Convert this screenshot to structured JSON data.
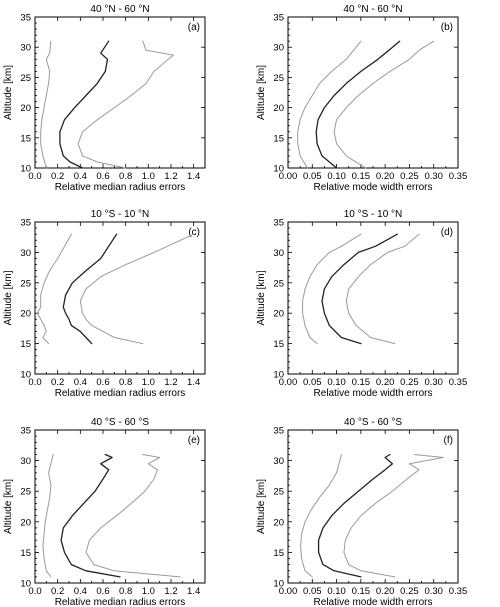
{
  "chart_data": [
    {
      "type": "line",
      "title": "40 °N - 60 °N",
      "panel_label": "(a)",
      "xlabel": "Relative median radius errors",
      "ylabel": "Altitude [km]",
      "xlim": [
        0,
        1.5
      ],
      "ylim": [
        10,
        35
      ],
      "xticks": [
        "0.0",
        "0.2",
        "0.4",
        "0.6",
        "0.8",
        "1.0",
        "1.2",
        "1.4"
      ],
      "yticks": [
        "10",
        "15",
        "20",
        "25",
        "30",
        "35"
      ],
      "series": [
        {
          "style": "light",
          "x": [
            0.1,
            0.07,
            0.05,
            0.05,
            0.06,
            0.08,
            0.1,
            0.12,
            0.13,
            0.1,
            0.13,
            0.14
          ],
          "y": [
            10,
            12,
            14,
            16,
            18,
            20,
            22,
            24,
            26,
            28,
            29,
            31
          ]
        },
        {
          "style": "dark",
          "x": [
            0.42,
            0.31,
            0.25,
            0.22,
            0.22,
            0.26,
            0.35,
            0.45,
            0.55,
            0.62,
            0.64,
            0.58,
            0.65
          ],
          "y": [
            10,
            11,
            12,
            14,
            16,
            18,
            20,
            22,
            24,
            26,
            28,
            29,
            31
          ]
        },
        {
          "style": "light",
          "x": [
            0.8,
            0.55,
            0.42,
            0.38,
            0.42,
            0.55,
            0.7,
            0.85,
            0.98,
            1.05,
            1.22,
            0.98,
            0.95
          ],
          "y": [
            10,
            11,
            12,
            14,
            16,
            18,
            20,
            22,
            24,
            26,
            28.7,
            29.5,
            31
          ]
        }
      ]
    },
    {
      "type": "line",
      "title": "40 °N - 60 °N",
      "panel_label": "(b)",
      "xlabel": "Relative mode width errors",
      "ylabel": "Altitude [km]",
      "xlim": [
        0,
        0.35
      ],
      "ylim": [
        10,
        35
      ],
      "xticks": [
        "0.00",
        "0.05",
        "0.10",
        "0.15",
        "0.20",
        "0.25",
        "0.30",
        "0.35"
      ],
      "yticks": [
        "10",
        "15",
        "20",
        "25",
        "30",
        "35"
      ],
      "series": [
        {
          "style": "light",
          "x": [
            0.04,
            0.025,
            0.02,
            0.02,
            0.025,
            0.035,
            0.05,
            0.065,
            0.09,
            0.12,
            0.15
          ],
          "y": [
            10,
            12,
            14,
            16,
            18,
            20,
            22,
            24,
            26,
            28,
            31
          ]
        },
        {
          "style": "dark",
          "x": [
            0.1,
            0.07,
            0.06,
            0.058,
            0.062,
            0.075,
            0.095,
            0.12,
            0.15,
            0.185,
            0.23
          ],
          "y": [
            10,
            12,
            14,
            16,
            18,
            20,
            22,
            24,
            26,
            28,
            31
          ]
        },
        {
          "style": "light",
          "x": [
            0.16,
            0.12,
            0.1,
            0.095,
            0.1,
            0.12,
            0.145,
            0.175,
            0.21,
            0.25,
            0.27,
            0.3
          ],
          "y": [
            10,
            12,
            14,
            16,
            18,
            20,
            22,
            24,
            26,
            28,
            29.5,
            31
          ]
        }
      ]
    },
    {
      "type": "line",
      "title": "10 °S - 10 °N",
      "panel_label": "(c)",
      "xlabel": "Relative median radius errors",
      "ylabel": "Altitude [km]",
      "xlim": [
        0,
        1.5
      ],
      "ylim": [
        10,
        35
      ],
      "xticks": [
        "0.0",
        "0.2",
        "0.4",
        "0.6",
        "0.8",
        "1.0",
        "1.2",
        "1.4"
      ],
      "yticks": [
        "10",
        "15",
        "20",
        "25",
        "30",
        "35"
      ],
      "series": [
        {
          "style": "light",
          "x": [
            0.12,
            0.07,
            0.1,
            0.08,
            0.05,
            0.02,
            0.05,
            0.05,
            0.08,
            0.13,
            0.2,
            0.32
          ],
          "y": [
            15,
            16,
            17,
            18,
            19,
            20,
            21,
            23,
            25,
            27,
            29,
            33
          ]
        },
        {
          "style": "dark",
          "x": [
            0.5,
            0.45,
            0.4,
            0.32,
            0.3,
            0.27,
            0.25,
            0.27,
            0.33,
            0.45,
            0.58,
            0.72
          ],
          "y": [
            15,
            16,
            17,
            18,
            19,
            20,
            21,
            23,
            25,
            27,
            29,
            33
          ]
        },
        {
          "style": "light",
          "x": [
            0.95,
            0.7,
            0.6,
            0.5,
            0.45,
            0.42,
            0.4,
            0.45,
            0.58,
            0.8,
            1.05,
            1.4
          ],
          "y": [
            15,
            16,
            17,
            18,
            19,
            20,
            22,
            24,
            26,
            28,
            30,
            33
          ]
        }
      ]
    },
    {
      "type": "line",
      "title": "10 °S - 10 °N",
      "panel_label": "(d)",
      "xlabel": "Relative mode width errors",
      "ylabel": "Altitude [km]",
      "xlim": [
        0,
        0.35
      ],
      "ylim": [
        10,
        35
      ],
      "xticks": [
        "0.00",
        "0.05",
        "0.10",
        "0.15",
        "0.20",
        "0.25",
        "0.30",
        "0.35"
      ],
      "yticks": [
        "10",
        "15",
        "20",
        "25",
        "30",
        "35"
      ],
      "series": [
        {
          "style": "light",
          "x": [
            0.06,
            0.045,
            0.035,
            0.03,
            0.03,
            0.035,
            0.045,
            0.06,
            0.085,
            0.11,
            0.15
          ],
          "y": [
            15,
            16,
            18,
            20,
            22,
            24,
            26,
            28,
            30,
            31,
            33
          ]
        },
        {
          "style": "dark",
          "x": [
            0.15,
            0.11,
            0.085,
            0.075,
            0.07,
            0.075,
            0.09,
            0.115,
            0.145,
            0.18,
            0.225
          ],
          "y": [
            15,
            16,
            18,
            20,
            22,
            24,
            26,
            28,
            30,
            31,
            33
          ]
        },
        {
          "style": "light",
          "x": [
            0.22,
            0.17,
            0.14,
            0.125,
            0.12,
            0.125,
            0.145,
            0.17,
            0.205,
            0.24,
            0.27
          ],
          "y": [
            15,
            16,
            18,
            20,
            22,
            24,
            26,
            28,
            30,
            31,
            33
          ]
        }
      ]
    },
    {
      "type": "line",
      "title": "40 °S - 60 °S",
      "panel_label": "(e)",
      "xlabel": "Relative median radius errors",
      "ylabel": "Altitude [km]",
      "xlim": [
        0,
        1.5
      ],
      "ylim": [
        10,
        35
      ],
      "xticks": [
        "0.0",
        "0.2",
        "0.4",
        "0.6",
        "0.8",
        "1.0",
        "1.2",
        "1.4"
      ],
      "yticks": [
        "10",
        "15",
        "20",
        "25",
        "30",
        "35"
      ],
      "series": [
        {
          "style": "light",
          "x": [
            0.14,
            0.1,
            0.08,
            0.07,
            0.08,
            0.09,
            0.11,
            0.13,
            0.14,
            0.12,
            0.14,
            0.16
          ],
          "y": [
            11,
            12,
            14,
            16,
            18,
            20,
            22,
            24,
            26,
            28,
            29.5,
            31
          ]
        },
        {
          "style": "dark",
          "x": [
            0.75,
            0.45,
            0.32,
            0.26,
            0.23,
            0.25,
            0.33,
            0.43,
            0.53,
            0.6,
            0.65,
            0.58,
            0.68,
            0.62
          ],
          "y": [
            11,
            12,
            13,
            15,
            17,
            19,
            21,
            23,
            25,
            27,
            28.5,
            29.5,
            30.5,
            31
          ]
        },
        {
          "style": "light",
          "x": [
            1.28,
            0.7,
            0.52,
            0.45,
            0.48,
            0.58,
            0.72,
            0.85,
            0.97,
            1.05,
            1.08,
            1.0,
            1.1,
            0.95
          ],
          "y": [
            11,
            12,
            13,
            15,
            17,
            19,
            21,
            23,
            25,
            27,
            28.5,
            29.5,
            30.5,
            31
          ]
        }
      ]
    },
    {
      "type": "line",
      "title": "40 °S - 60 °S",
      "panel_label": "(f)",
      "xlabel": "Relative mode width errors",
      "ylabel": "Altitude [km]",
      "xlim": [
        0,
        0.35
      ],
      "ylim": [
        10,
        35
      ],
      "xticks": [
        "0.00",
        "0.05",
        "0.10",
        "0.15",
        "0.20",
        "0.25",
        "0.30",
        "0.35"
      ],
      "yticks": [
        "10",
        "15",
        "20",
        "25",
        "30",
        "35"
      ],
      "series": [
        {
          "style": "light",
          "x": [
            0.05,
            0.035,
            0.028,
            0.026,
            0.028,
            0.035,
            0.048,
            0.065,
            0.085,
            0.1,
            0.11
          ],
          "y": [
            11,
            12,
            14,
            16,
            18,
            20,
            22,
            24,
            26,
            28,
            31
          ]
        },
        {
          "style": "dark",
          "x": [
            0.15,
            0.095,
            0.072,
            0.063,
            0.063,
            0.072,
            0.09,
            0.115,
            0.145,
            0.175,
            0.2,
            0.215,
            0.2,
            0.21
          ],
          "y": [
            11,
            12,
            13,
            15,
            17,
            19,
            21,
            23,
            25,
            27,
            28.5,
            29.5,
            30.5,
            31
          ]
        },
        {
          "style": "light",
          "x": [
            0.22,
            0.15,
            0.125,
            0.115,
            0.118,
            0.13,
            0.15,
            0.18,
            0.215,
            0.245,
            0.27,
            0.25,
            0.32,
            0.26
          ],
          "y": [
            11,
            12,
            13,
            15,
            17,
            19,
            21,
            23,
            25,
            27,
            28.5,
            29.5,
            30.5,
            31
          ]
        }
      ]
    }
  ],
  "colors": {
    "dark": "#222222",
    "light": "#9a9a9a",
    "axis": "#000000"
  }
}
